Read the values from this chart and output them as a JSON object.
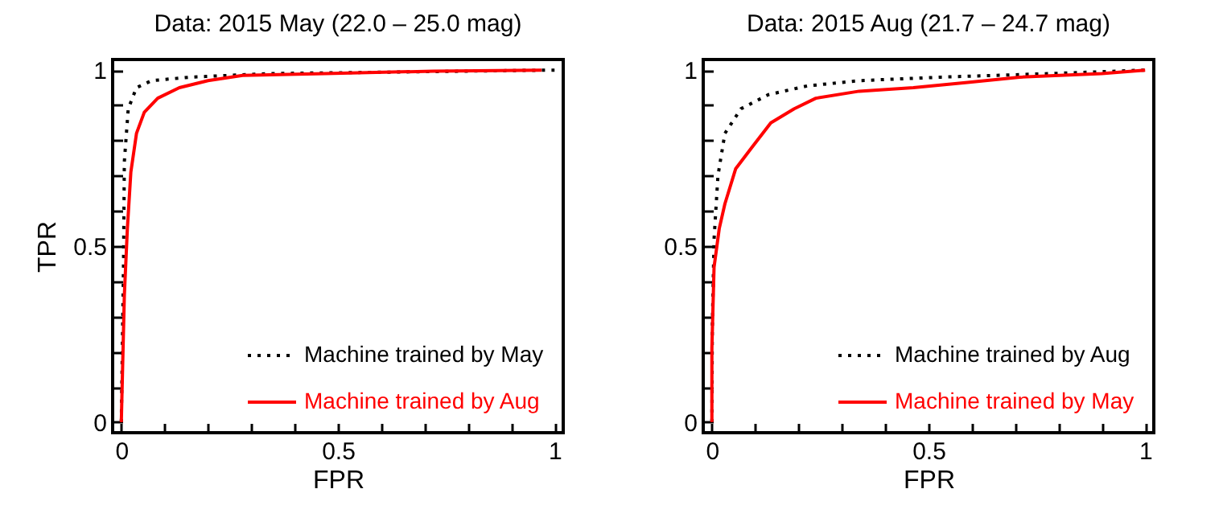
{
  "chart_data": [
    {
      "type": "line",
      "title": "Data: 2015 May (22.0 – 25.0 mag)",
      "xlabel": "FPR",
      "ylabel": "TPR",
      "xlim": [
        -0.02,
        1.02
      ],
      "ylim": [
        -0.03,
        1.03
      ],
      "xticks": [
        0,
        {
          "value": 0.1,
          "label": null
        },
        {
          "value": 0.2,
          "label": null
        },
        {
          "value": 0.3,
          "label": null
        },
        {
          "value": 0.4,
          "label": null
        },
        0.5,
        {
          "value": 0.6,
          "label": null
        },
        {
          "value": 0.7,
          "label": null
        },
        {
          "value": 0.8,
          "label": null
        },
        {
          "value": 0.9,
          "label": null
        },
        1
      ],
      "yticks": [
        0,
        {
          "value": 0.1,
          "label": null
        },
        {
          "value": 0.2,
          "label": null
        },
        {
          "value": 0.3,
          "label": null
        },
        {
          "value": 0.4,
          "label": null
        },
        0.5,
        {
          "value": 0.6,
          "label": null
        },
        {
          "value": 0.7,
          "label": null
        },
        {
          "value": 0.8,
          "label": null
        },
        {
          "value": 0.9,
          "label": null
        },
        1
      ],
      "legend": "bottom right",
      "marker": "none",
      "series": [
        {
          "name": "Machine trained by May",
          "color": "#000000",
          "line_style": "dotted",
          "x": [
            0,
            0.005,
            0.007,
            0.016,
            0.035,
            0.07,
            0.16,
            0.34,
            1
          ],
          "values": [
            0,
            0.44,
            0.74,
            0.89,
            0.95,
            0.97,
            0.98,
            0.99,
            1
          ]
        },
        {
          "name": "Machine trained by Aug",
          "color": "#ff0000",
          "line_style": "solid",
          "x": [
            0,
            0.007,
            0.014,
            0.022,
            0.035,
            0.053,
            0.084,
            0.134,
            0.2,
            0.28,
            0.47,
            0.72,
            0.97
          ],
          "values": [
            0,
            0.36,
            0.55,
            0.71,
            0.82,
            0.88,
            0.92,
            0.95,
            0.97,
            0.985,
            0.99,
            0.997,
            1
          ]
        }
      ]
    },
    {
      "type": "line",
      "title": "Data: 2015 Aug (21.7 – 24.7 mag)",
      "xlabel": "FPR",
      "xlim": [
        -0.02,
        1.02
      ],
      "ylim": [
        -0.03,
        1.03
      ],
      "xticks": [
        0,
        {
          "value": 0.1,
          "label": null
        },
        {
          "value": 0.2,
          "label": null
        },
        {
          "value": 0.3,
          "label": null
        },
        {
          "value": 0.4,
          "label": null
        },
        0.5,
        {
          "value": 0.6,
          "label": null
        },
        {
          "value": 0.7,
          "label": null
        },
        {
          "value": 0.8,
          "label": null
        },
        {
          "value": 0.9,
          "label": null
        },
        1
      ],
      "yticks": [
        0,
        {
          "value": 0.1,
          "label": null
        },
        {
          "value": 0.2,
          "label": null
        },
        {
          "value": 0.3,
          "label": null
        },
        {
          "value": 0.4,
          "label": null
        },
        0.5,
        {
          "value": 0.6,
          "label": null
        },
        {
          "value": 0.7,
          "label": null
        },
        {
          "value": 0.8,
          "label": null
        },
        {
          "value": 0.9,
          "label": null
        },
        1
      ],
      "legend": "bottom right",
      "marker": "none",
      "series": [
        {
          "name": "Machine trained by Aug",
          "color": "#000000",
          "line_style": "dotted",
          "x": [
            0,
            0.001,
            0.005,
            0.014,
            0.03,
            0.067,
            0.13,
            0.22,
            0.34,
            0.53,
            0.78,
            1
          ],
          "values": [
            0,
            0.27,
            0.52,
            0.7,
            0.82,
            0.89,
            0.93,
            0.955,
            0.97,
            0.98,
            0.99,
            1
          ]
        },
        {
          "name": "Machine trained by May",
          "color": "#ff0000",
          "line_style": "solid",
          "x": [
            0,
            0,
            0.005,
            0.017,
            0.03,
            0.055,
            0.092,
            0.136,
            0.19,
            0.24,
            0.34,
            0.465,
            0.59,
            0.71,
            0.9,
            1
          ],
          "values": [
            0,
            0.21,
            0.44,
            0.55,
            0.62,
            0.72,
            0.78,
            0.85,
            0.89,
            0.92,
            0.94,
            0.95,
            0.965,
            0.98,
            0.99,
            1
          ]
        }
      ]
    }
  ]
}
